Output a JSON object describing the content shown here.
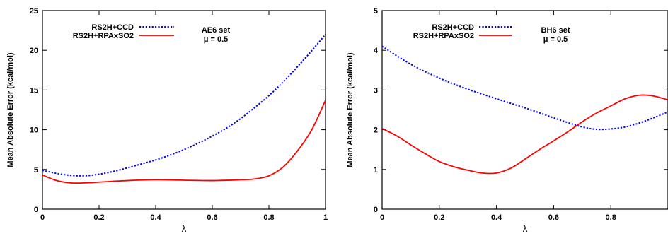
{
  "chart_data": [
    {
      "type": "line",
      "xlabel": "λ",
      "ylabel": "Mean Absolute Error (kcal/mol)",
      "xlim": [
        0,
        1
      ],
      "ylim": [
        0,
        25
      ],
      "xticks": [
        "0",
        "0.2",
        "0.4",
        "0.6",
        "0.8",
        "1"
      ],
      "xtick_values": [
        0,
        0.2,
        0.4,
        0.6,
        0.8,
        1
      ],
      "yticks": [
        "0",
        "5",
        "10",
        "15",
        "20",
        "25"
      ],
      "ytick_values": [
        0,
        5,
        10,
        15,
        20,
        25
      ],
      "annotation": [
        "AE6 set",
        "μ = 0.5"
      ],
      "legend_position": "top-left",
      "series": [
        {
          "name": "RS2H+CCD",
          "color": "#0000ff",
          "style": "dotted",
          "x": [
            0,
            0.05,
            0.1,
            0.15,
            0.2,
            0.25,
            0.3,
            0.35,
            0.4,
            0.45,
            0.5,
            0.55,
            0.6,
            0.65,
            0.7,
            0.75,
            0.8,
            0.85,
            0.9,
            0.95,
            1.0
          ],
          "y": [
            4.9,
            4.5,
            4.25,
            4.2,
            4.4,
            4.75,
            5.2,
            5.7,
            6.2,
            6.8,
            7.5,
            8.3,
            9.2,
            10.2,
            11.4,
            12.8,
            14.3,
            16.0,
            17.9,
            19.9,
            22.0
          ]
        },
        {
          "name": "RS2H+RPAxSO2",
          "color": "#ff0000",
          "style": "solid",
          "x": [
            0,
            0.05,
            0.1,
            0.15,
            0.2,
            0.3,
            0.4,
            0.5,
            0.6,
            0.7,
            0.75,
            0.8,
            0.85,
            0.9,
            0.95,
            1.0
          ],
          "y": [
            4.3,
            3.6,
            3.3,
            3.3,
            3.4,
            3.6,
            3.7,
            3.65,
            3.6,
            3.7,
            3.8,
            4.2,
            5.3,
            7.3,
            9.9,
            13.7
          ]
        }
      ]
    },
    {
      "type": "line",
      "xlabel": "λ",
      "ylabel": "Mean Absolute Error (kcal/mol)",
      "xlim": [
        0,
        1
      ],
      "ylim": [
        0,
        5
      ],
      "xticks": [
        "0",
        "0.2",
        "0.4",
        "0.6",
        "0.8"
      ],
      "xtick_values": [
        0,
        0.2,
        0.4,
        0.6,
        0.8
      ],
      "yticks": [
        "0",
        "1",
        "2",
        "3",
        "4",
        "5"
      ],
      "ytick_values": [
        0,
        1,
        2,
        3,
        4,
        5
      ],
      "annotation": [
        "BH6 set",
        "μ = 0.5"
      ],
      "legend_position": "top-left",
      "series": [
        {
          "name": "RS2H+CCD",
          "color": "#0000ff",
          "style": "dotted",
          "x": [
            0,
            0.1,
            0.2,
            0.3,
            0.4,
            0.5,
            0.6,
            0.65,
            0.7,
            0.75,
            0.8,
            0.85,
            0.9,
            0.95,
            1.0
          ],
          "y": [
            4.1,
            3.65,
            3.3,
            3.02,
            2.78,
            2.55,
            2.3,
            2.18,
            2.07,
            2.01,
            2.02,
            2.07,
            2.17,
            2.3,
            2.45
          ]
        },
        {
          "name": "RS2H+RPAxSO2",
          "color": "#ff0000",
          "style": "solid",
          "x": [
            0,
            0.05,
            0.1,
            0.15,
            0.2,
            0.25,
            0.3,
            0.35,
            0.4,
            0.45,
            0.5,
            0.55,
            0.6,
            0.65,
            0.7,
            0.75,
            0.8,
            0.85,
            0.9,
            0.95,
            1.0
          ],
          "y": [
            2.03,
            1.85,
            1.62,
            1.4,
            1.2,
            1.07,
            0.98,
            0.91,
            0.91,
            1.03,
            1.26,
            1.5,
            1.72,
            1.95,
            2.2,
            2.42,
            2.6,
            2.78,
            2.87,
            2.85,
            2.75
          ]
        }
      ]
    }
  ]
}
